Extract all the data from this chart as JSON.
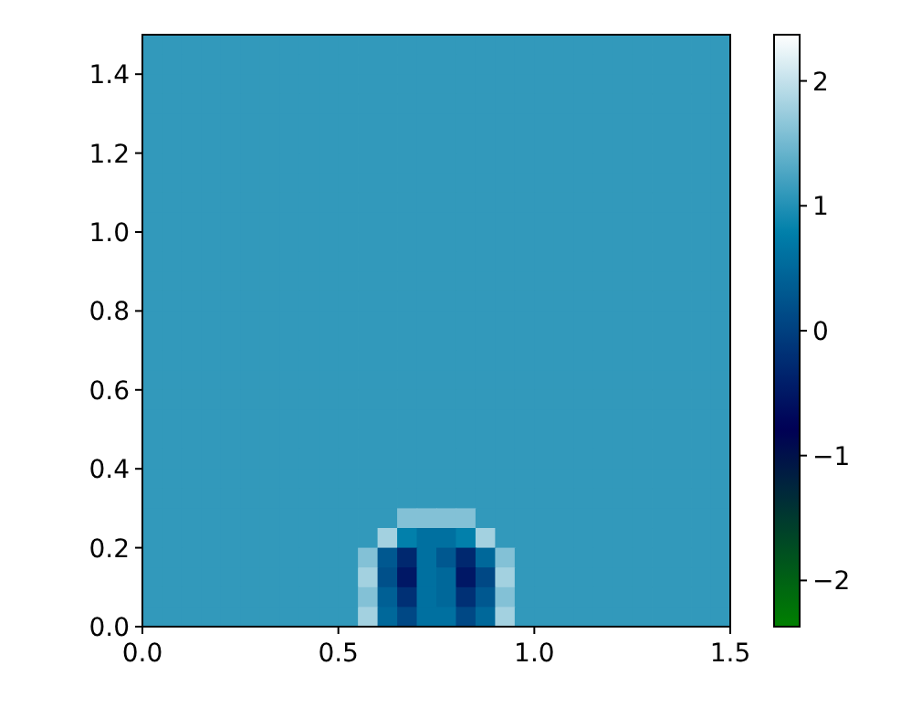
{
  "chart_data": {
    "type": "heatmap",
    "x": [
      0.025,
      0.075,
      0.125,
      0.175,
      0.225,
      0.275,
      0.325,
      0.375,
      0.425,
      0.475,
      0.525,
      0.575,
      0.625,
      0.675,
      0.725,
      0.775,
      0.825,
      0.875,
      0.925,
      0.975,
      1.025,
      1.075,
      1.125,
      1.175,
      1.225,
      1.275,
      1.325,
      1.375,
      1.425,
      1.475
    ],
    "y": [
      1.475,
      1.425,
      1.375,
      1.325,
      1.275,
      1.225,
      1.175,
      1.125,
      1.075,
      1.025,
      0.975,
      0.925,
      0.875,
      0.825,
      0.775,
      0.725,
      0.675,
      0.625,
      0.575,
      0.525,
      0.475,
      0.425,
      0.375,
      0.325,
      0.275,
      0.225,
      0.175,
      0.125,
      0.075,
      0.025
    ],
    "xlim": [
      0,
      1.5
    ],
    "ylim": [
      0,
      1.5
    ],
    "xticks": [
      {
        "value": 0,
        "label": "0.0"
      },
      {
        "value": 0.5,
        "label": "0.5"
      },
      {
        "value": 1,
        "label": "1.0"
      },
      {
        "value": 1.5,
        "label": "1.5"
      }
    ],
    "yticks": [
      {
        "value": 0,
        "label": "0.0"
      },
      {
        "value": 0.2,
        "label": "0.2"
      },
      {
        "value": 0.4,
        "label": "0.4"
      },
      {
        "value": 0.6,
        "label": "0.6"
      },
      {
        "value": 0.8,
        "label": "0.8"
      },
      {
        "value": 1,
        "label": "1.0"
      },
      {
        "value": 1.2,
        "label": "1.2"
      },
      {
        "value": 1.4,
        "label": "1.4"
      }
    ],
    "clim": [
      -2.37,
      2.37
    ],
    "cticks": [
      {
        "value": -2,
        "label": "−2"
      },
      {
        "value": -1,
        "label": "−1"
      },
      0,
      1,
      2
    ],
    "cells": [
      [
        1.1,
        1.1,
        1.1,
        1.1,
        1.1,
        1.1,
        1.1,
        1.1,
        1.1,
        1.1,
        1.1,
        1.1,
        1.1,
        1.1,
        1.1,
        1.1,
        1.1,
        1.1,
        1.1,
        1.1,
        1.1,
        1.1,
        1.1,
        1.1,
        1.1,
        1.1,
        1.1,
        1.1,
        1.1,
        1.1
      ],
      [
        1.1,
        1.1,
        1.1,
        1.1,
        1.1,
        1.1,
        1.1,
        1.1,
        1.1,
        1.1,
        1.1,
        1.1,
        1.1,
        1.1,
        1.1,
        1.1,
        1.1,
        1.1,
        1.1,
        1.1,
        1.1,
        1.1,
        1.1,
        1.1,
        1.1,
        1.1,
        1.1,
        1.1,
        1.1,
        1.1
      ],
      [
        1.1,
        1.1,
        1.1,
        1.1,
        1.1,
        1.1,
        1.1,
        1.1,
        1.1,
        1.1,
        1.1,
        1.1,
        1.1,
        1.1,
        1.1,
        1.1,
        1.1,
        1.1,
        1.1,
        1.1,
        1.1,
        1.1,
        1.1,
        1.1,
        1.1,
        1.1,
        1.1,
        1.1,
        1.1,
        1.1
      ],
      [
        1.1,
        1.1,
        1.1,
        1.1,
        1.1,
        1.1,
        1.1,
        1.1,
        1.1,
        1.1,
        1.1,
        1.1,
        1.1,
        1.1,
        1.1,
        1.1,
        1.1,
        1.1,
        1.1,
        1.1,
        1.1,
        1.1,
        1.1,
        1.1,
        1.1,
        1.1,
        1.1,
        1.1,
        1.1,
        1.1
      ],
      [
        1.1,
        1.1,
        1.1,
        1.1,
        1.1,
        1.1,
        1.1,
        1.1,
        1.1,
        1.1,
        1.1,
        1.1,
        1.1,
        1.1,
        1.1,
        1.1,
        1.1,
        1.1,
        1.1,
        1.1,
        1.1,
        1.1,
        1.1,
        1.1,
        1.1,
        1.1,
        1.1,
        1.1,
        1.1,
        1.1
      ],
      [
        1.1,
        1.1,
        1.1,
        1.1,
        1.1,
        1.1,
        1.1,
        1.1,
        1.1,
        1.1,
        1.1,
        1.1,
        1.1,
        1.1,
        1.1,
        1.1,
        1.1,
        1.1,
        1.1,
        1.1,
        1.1,
        1.1,
        1.1,
        1.1,
        1.1,
        1.1,
        1.1,
        1.1,
        1.1,
        1.1
      ],
      [
        1.1,
        1.1,
        1.1,
        1.1,
        1.1,
        1.1,
        1.1,
        1.1,
        1.1,
        1.1,
        1.1,
        1.1,
        1.1,
        1.1,
        1.1,
        1.1,
        1.1,
        1.1,
        1.1,
        1.1,
        1.1,
        1.1,
        1.1,
        1.1,
        1.1,
        1.1,
        1.1,
        1.1,
        1.1,
        1.1
      ],
      [
        1.1,
        1.1,
        1.1,
        1.1,
        1.1,
        1.1,
        1.1,
        1.1,
        1.1,
        1.1,
        1.1,
        1.1,
        1.1,
        1.1,
        1.1,
        1.1,
        1.1,
        1.1,
        1.1,
        1.1,
        1.1,
        1.1,
        1.1,
        1.1,
        1.1,
        1.1,
        1.1,
        1.1,
        1.1,
        1.1
      ],
      [
        1.1,
        1.1,
        1.1,
        1.1,
        1.1,
        1.1,
        1.1,
        1.1,
        1.1,
        1.1,
        1.1,
        1.1,
        1.1,
        1.1,
        1.1,
        1.1,
        1.1,
        1.1,
        1.1,
        1.1,
        1.1,
        1.1,
        1.1,
        1.1,
        1.1,
        1.1,
        1.1,
        1.1,
        1.1,
        1.1
      ],
      [
        1.1,
        1.1,
        1.1,
        1.1,
        1.1,
        1.1,
        1.1,
        1.1,
        1.1,
        1.1,
        1.1,
        1.1,
        1.1,
        1.1,
        1.1,
        1.1,
        1.1,
        1.1,
        1.1,
        1.1,
        1.1,
        1.1,
        1.1,
        1.1,
        1.1,
        1.1,
        1.1,
        1.1,
        1.1,
        1.1
      ],
      [
        1.1,
        1.1,
        1.1,
        1.1,
        1.1,
        1.1,
        1.1,
        1.1,
        1.1,
        1.1,
        1.1,
        1.1,
        1.1,
        1.1,
        1.1,
        1.1,
        1.1,
        1.1,
        1.1,
        1.1,
        1.1,
        1.1,
        1.1,
        1.1,
        1.1,
        1.1,
        1.1,
        1.1,
        1.1,
        1.1
      ],
      [
        1.1,
        1.1,
        1.1,
        1.1,
        1.1,
        1.1,
        1.1,
        1.1,
        1.1,
        1.1,
        1.1,
        1.1,
        1.1,
        1.1,
        1.1,
        1.1,
        1.1,
        1.1,
        1.1,
        1.1,
        1.1,
        1.1,
        1.1,
        1.1,
        1.1,
        1.1,
        1.1,
        1.1,
        1.1,
        1.1
      ],
      [
        1.1,
        1.1,
        1.1,
        1.1,
        1.1,
        1.1,
        1.1,
        1.1,
        1.1,
        1.1,
        1.1,
        1.1,
        1.1,
        1.1,
        1.1,
        1.1,
        1.1,
        1.1,
        1.1,
        1.1,
        1.1,
        1.1,
        1.1,
        1.1,
        1.1,
        1.1,
        1.1,
        1.1,
        1.1,
        1.1
      ],
      [
        1.1,
        1.1,
        1.1,
        1.1,
        1.1,
        1.1,
        1.1,
        1.1,
        1.1,
        1.1,
        1.1,
        1.1,
        1.1,
        1.1,
        1.1,
        1.1,
        1.1,
        1.1,
        1.1,
        1.1,
        1.1,
        1.1,
        1.1,
        1.1,
        1.1,
        1.1,
        1.1,
        1.1,
        1.1,
        1.1
      ],
      [
        1.1,
        1.1,
        1.1,
        1.1,
        1.1,
        1.1,
        1.1,
        1.1,
        1.1,
        1.1,
        1.1,
        1.1,
        1.1,
        1.1,
        1.1,
        1.1,
        1.1,
        1.1,
        1.1,
        1.1,
        1.1,
        1.1,
        1.1,
        1.1,
        1.1,
        1.1,
        1.1,
        1.1,
        1.1,
        1.1
      ],
      [
        1.1,
        1.1,
        1.1,
        1.1,
        1.1,
        1.1,
        1.1,
        1.1,
        1.1,
        1.1,
        1.1,
        1.1,
        1.1,
        1.1,
        1.1,
        1.1,
        1.1,
        1.1,
        1.1,
        1.1,
        1.1,
        1.1,
        1.1,
        1.1,
        1.1,
        1.1,
        1.1,
        1.1,
        1.1,
        1.1
      ],
      [
        1.1,
        1.1,
        1.1,
        1.1,
        1.1,
        1.1,
        1.1,
        1.1,
        1.1,
        1.1,
        1.1,
        1.1,
        1.1,
        1.1,
        1.1,
        1.1,
        1.1,
        1.1,
        1.1,
        1.1,
        1.1,
        1.1,
        1.1,
        1.1,
        1.1,
        1.1,
        1.1,
        1.1,
        1.1,
        1.1
      ],
      [
        1.1,
        1.1,
        1.1,
        1.1,
        1.1,
        1.1,
        1.1,
        1.1,
        1.1,
        1.1,
        1.1,
        1.1,
        1.1,
        1.1,
        1.1,
        1.1,
        1.1,
        1.1,
        1.1,
        1.1,
        1.1,
        1.1,
        1.1,
        1.1,
        1.1,
        1.1,
        1.1,
        1.1,
        1.1,
        1.1
      ],
      [
        1.1,
        1.1,
        1.1,
        1.1,
        1.1,
        1.1,
        1.1,
        1.1,
        1.1,
        1.1,
        1.1,
        1.1,
        1.1,
        1.1,
        1.1,
        1.1,
        1.1,
        1.1,
        1.1,
        1.1,
        1.1,
        1.1,
        1.1,
        1.1,
        1.1,
        1.1,
        1.1,
        1.1,
        1.1,
        1.1
      ],
      [
        1.1,
        1.1,
        1.1,
        1.1,
        1.1,
        1.1,
        1.1,
        1.1,
        1.1,
        1.1,
        1.1,
        1.1,
        1.1,
        1.1,
        1.1,
        1.1,
        1.1,
        1.1,
        1.1,
        1.1,
        1.1,
        1.1,
        1.1,
        1.1,
        1.1,
        1.1,
        1.1,
        1.1,
        1.1,
        1.1
      ],
      [
        1.1,
        1.1,
        1.1,
        1.1,
        1.1,
        1.1,
        1.1,
        1.1,
        1.1,
        1.1,
        1.1,
        1.1,
        1.1,
        1.1,
        1.1,
        1.1,
        1.1,
        1.1,
        1.1,
        1.1,
        1.1,
        1.1,
        1.1,
        1.1,
        1.1,
        1.1,
        1.1,
        1.1,
        1.1,
        1.1
      ],
      [
        1.1,
        1.1,
        1.1,
        1.1,
        1.1,
        1.1,
        1.1,
        1.1,
        1.1,
        1.1,
        1.1,
        1.1,
        1.1,
        1.1,
        1.1,
        1.1,
        1.1,
        1.1,
        1.1,
        1.1,
        1.1,
        1.1,
        1.1,
        1.1,
        1.1,
        1.1,
        1.1,
        1.1,
        1.1,
        1.1
      ],
      [
        1.1,
        1.1,
        1.1,
        1.1,
        1.1,
        1.1,
        1.1,
        1.1,
        1.1,
        1.1,
        1.1,
        1.1,
        1.1,
        1.1,
        1.1,
        1.1,
        1.1,
        1.1,
        1.1,
        1.1,
        1.1,
        1.1,
        1.1,
        1.1,
        1.1,
        1.1,
        1.1,
        1.1,
        1.1,
        1.1
      ],
      [
        1.1,
        1.1,
        1.1,
        1.1,
        1.1,
        1.1,
        1.1,
        1.1,
        1.1,
        1.1,
        1.1,
        1.1,
        1.1,
        1.1,
        1.1,
        1.1,
        1.1,
        1.1,
        1.1,
        1.1,
        1.1,
        1.1,
        1.1,
        1.1,
        1.1,
        1.1,
        1.1,
        1.1,
        1.1,
        1.1
      ],
      [
        1.1,
        1.1,
        1.1,
        1.1,
        1.1,
        1.1,
        1.1,
        1.1,
        1.1,
        1.1,
        1.1,
        1.1,
        1.1,
        1.6,
        1.6,
        1.6,
        1.6,
        1.1,
        1.1,
        1.1,
        1.1,
        1.1,
        1.1,
        1.1,
        1.1,
        1.1,
        1.1,
        1.1,
        1.1,
        1.1
      ],
      [
        1.1,
        1.1,
        1.1,
        1.1,
        1.1,
        1.1,
        1.1,
        1.1,
        1.1,
        1.1,
        1.1,
        1.1,
        1.8,
        0.8,
        0.6,
        0.6,
        0.8,
        1.8,
        1.1,
        1.1,
        1.1,
        1.1,
        1.1,
        1.1,
        1.1,
        1.1,
        1.1,
        1.1,
        1.1,
        1.1
      ],
      [
        1.1,
        1.1,
        1.1,
        1.1,
        1.1,
        1.1,
        1.1,
        1.1,
        1.1,
        1.1,
        1.1,
        1.6,
        0.3,
        -0.3,
        0.6,
        0.3,
        -0.3,
        0.5,
        1.6,
        1.1,
        1.1,
        1.1,
        1.1,
        1.1,
        1.1,
        1.1,
        1.1,
        1.1,
        1.1,
        1.1
      ],
      [
        1.1,
        1.1,
        1.1,
        1.1,
        1.1,
        1.1,
        1.1,
        1.1,
        1.1,
        1.1,
        1.1,
        1.8,
        0.2,
        -0.5,
        0.6,
        0.5,
        -0.5,
        0.1,
        1.8,
        1.1,
        1.1,
        1.1,
        1.1,
        1.1,
        1.1,
        1.1,
        1.1,
        1.1,
        1.1,
        1.1
      ],
      [
        1.1,
        1.1,
        1.1,
        1.1,
        1.1,
        1.1,
        1.1,
        1.1,
        1.1,
        1.1,
        1.1,
        1.6,
        0.4,
        -0.2,
        0.6,
        0.5,
        -0.2,
        0.3,
        1.6,
        1.1,
        1.1,
        1.1,
        1.1,
        1.1,
        1.1,
        1.1,
        1.1,
        1.1,
        1.1,
        1.1
      ],
      [
        1.1,
        1.1,
        1.1,
        1.1,
        1.1,
        1.1,
        1.1,
        1.1,
        1.1,
        1.1,
        1.1,
        1.8,
        0.5,
        0.1,
        0.6,
        0.6,
        0.1,
        0.5,
        1.8,
        1.1,
        1.1,
        1.1,
        1.1,
        1.1,
        1.1,
        1.1,
        1.1,
        1.1,
        1.1,
        1.1
      ]
    ]
  }
}
